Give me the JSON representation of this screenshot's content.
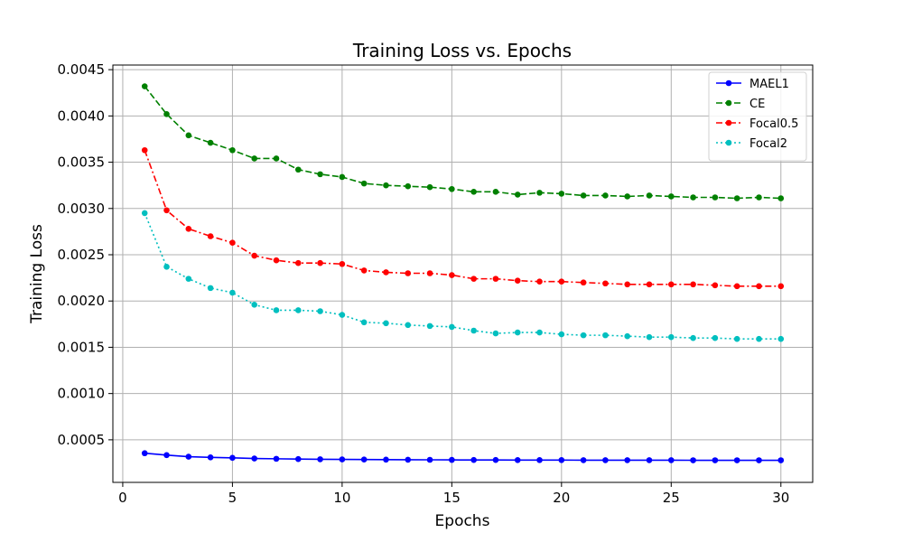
{
  "chart_data": {
    "type": "line",
    "title": "Training Loss vs. Epochs",
    "xlabel": "Epochs",
    "ylabel": "Training Loss",
    "xlim": [
      -0.45,
      31.45
    ],
    "ylim": [
      4e-05,
      0.00455
    ],
    "xticks": [
      0,
      5,
      10,
      15,
      20,
      25,
      30
    ],
    "yticks": [
      0.0005,
      0.001,
      0.0015,
      0.002,
      0.0025,
      0.003,
      0.0035,
      0.004,
      0.0045
    ],
    "ytick_labels": [
      "0.0005",
      "0.0010",
      "0.0015",
      "0.0020",
      "0.0025",
      "0.0030",
      "0.0035",
      "0.0040",
      "0.0045"
    ],
    "grid": true,
    "legend_position": "top-right",
    "x": [
      1,
      2,
      3,
      4,
      5,
      6,
      7,
      8,
      9,
      10,
      11,
      12,
      13,
      14,
      15,
      16,
      17,
      18,
      19,
      20,
      21,
      22,
      23,
      24,
      25,
      26,
      27,
      28,
      29,
      30
    ],
    "series": [
      {
        "name": "MAEL1",
        "color": "#0000ff",
        "style": "solid",
        "values": [
          0.000355,
          0.000335,
          0.000318,
          0.00031,
          0.000305,
          0.000298,
          0.000295,
          0.000292,
          0.00029,
          0.000288,
          0.000287,
          0.000286,
          0.000285,
          0.000284,
          0.000283,
          0.000282,
          0.000282,
          0.000281,
          0.000281,
          0.000281,
          0.00028,
          0.00028,
          0.00028,
          0.00028,
          0.00028,
          0.000279,
          0.000279,
          0.000279,
          0.000279,
          0.000279
        ]
      },
      {
        "name": "CE",
        "color": "#008000",
        "style": "dashed",
        "values": [
          0.00432,
          0.00402,
          0.00379,
          0.00371,
          0.00363,
          0.00354,
          0.00354,
          0.00342,
          0.00337,
          0.00334,
          0.00327,
          0.00325,
          0.00324,
          0.00323,
          0.00321,
          0.00318,
          0.00318,
          0.00315,
          0.00317,
          0.00316,
          0.00314,
          0.00314,
          0.00313,
          0.00314,
          0.00313,
          0.00312,
          0.00312,
          0.00311,
          0.00312,
          0.00311
        ]
      },
      {
        "name": "Focal0.5",
        "color": "#ff0000",
        "style": "dashdot",
        "values": [
          0.00363,
          0.00298,
          0.00278,
          0.0027,
          0.00263,
          0.00249,
          0.00244,
          0.00241,
          0.00241,
          0.0024,
          0.00233,
          0.00231,
          0.0023,
          0.0023,
          0.00228,
          0.00224,
          0.00224,
          0.00222,
          0.00221,
          0.00221,
          0.0022,
          0.00219,
          0.00218,
          0.00218,
          0.00218,
          0.00218,
          0.00217,
          0.00216,
          0.00216,
          0.00216
        ]
      },
      {
        "name": "Focal2",
        "color": "#00bfbf",
        "style": "dotted",
        "values": [
          0.00295,
          0.00237,
          0.00224,
          0.00214,
          0.00209,
          0.00196,
          0.0019,
          0.0019,
          0.00189,
          0.00185,
          0.00177,
          0.00176,
          0.00174,
          0.00173,
          0.00172,
          0.00168,
          0.00165,
          0.00166,
          0.00166,
          0.00164,
          0.00163,
          0.00163,
          0.00162,
          0.00161,
          0.00161,
          0.0016,
          0.0016,
          0.00159,
          0.00159,
          0.00159
        ]
      }
    ]
  }
}
